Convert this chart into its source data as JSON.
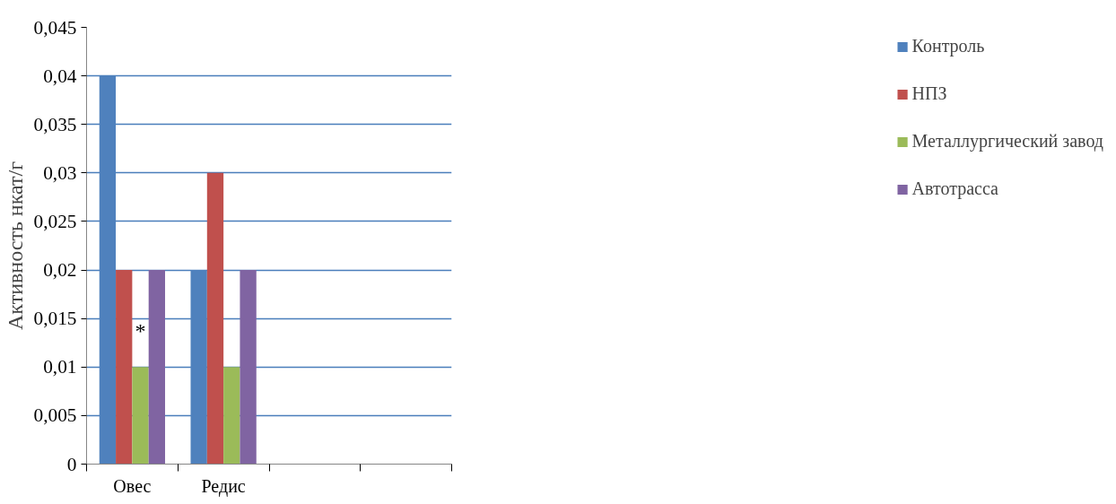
{
  "chart_data": {
    "type": "bar",
    "ylabel": "Активность нкат/г",
    "categories": [
      "Овес",
      "Редис",
      null,
      null
    ],
    "series": [
      {
        "name": "Контроль",
        "color": "#4f81bd",
        "values": [
          0.04,
          0.02,
          null,
          null
        ]
      },
      {
        "name": "НПЗ",
        "color": "#c0504d",
        "values": [
          0.02,
          0.03,
          null,
          null
        ]
      },
      {
        "name": "Металлургический завод",
        "color": "#9bbb59",
        "values": [
          0.01,
          0.01,
          null,
          null
        ]
      },
      {
        "name": "Автотрасса",
        "color": "#8064a2",
        "values": [
          0.02,
          0.02,
          null,
          null
        ]
      }
    ],
    "ylim": [
      0,
      0.045
    ],
    "yticks": [
      0,
      {
        "value": 0.005,
        "label": "0,005"
      },
      {
        "value": 0.01,
        "label": "0,01"
      },
      {
        "value": 0.015,
        "label": "0,015"
      },
      {
        "value": 0.02,
        "label": "0,02"
      },
      {
        "value": 0.025,
        "label": "0,025"
      },
      {
        "value": 0.03,
        "label": "0,03"
      },
      {
        "value": 0.035,
        "label": "0,035"
      },
      {
        "value": 0.04,
        "label": "0,04"
      },
      {
        "value": 0.045,
        "label": "0,045"
      }
    ],
    "annotations": [
      {
        "text": "*",
        "x": "Овес",
        "y": 0.0125
      }
    ],
    "grid": "y",
    "legend": "right"
  }
}
